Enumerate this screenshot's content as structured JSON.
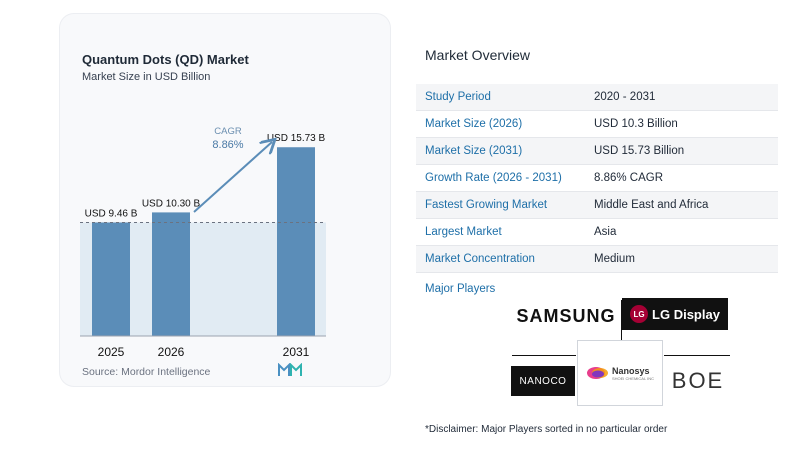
{
  "chart": {
    "title": "Quantum Dots (QD) Market",
    "subtitle": "Market Size in USD Billion",
    "source": "Source:  Mordor Intelligence",
    "cagr_label": "CAGR",
    "cagr_value": "8.86%"
  },
  "chart_data": {
    "type": "bar",
    "categories": [
      "2025",
      "2026",
      "2031"
    ],
    "values": [
      9.46,
      10.3,
      15.73
    ],
    "data_labels": [
      "USD 9.46 B",
      "USD 10.30 B",
      "USD 15.73 B"
    ],
    "title": "Quantum Dots (QD) Market",
    "subtitle": "Market Size in USD Billion",
    "xlabel": "",
    "ylabel": "",
    "ylim": [
      0,
      16.5
    ],
    "grid": false,
    "bar_color": "#5b8db8",
    "reference_line_value": 9.46,
    "annotations": [
      {
        "text": "CAGR",
        "value": "8.86%"
      }
    ]
  },
  "overview": {
    "title": "Market Overview",
    "rows": [
      {
        "label": "Study Period",
        "value": "2020 - 2031"
      },
      {
        "label": "Market Size (2026)",
        "value": "USD 10.3 Billion"
      },
      {
        "label": "Market Size (2031)",
        "value": "USD 15.73 Billion"
      },
      {
        "label": "Growth Rate (2026 - 2031)",
        "value": "8.86% CAGR"
      },
      {
        "label": "Fastest Growing Market",
        "value": "Middle East and Africa"
      },
      {
        "label": "Largest Market",
        "value": "Asia"
      },
      {
        "label": "Market Concentration",
        "value": "Medium"
      }
    ]
  },
  "players": {
    "title": "Major Players",
    "logos": {
      "samsung": "SAMSUNG",
      "lg_mark": "LG",
      "lg_display": "LG Display",
      "nanoco": "NANOCO",
      "nanosys": "Nanosys",
      "nanosys_sub": "SHOEI CHEMICAL INC",
      "boe": "BOE"
    }
  },
  "disclaimer": "*Disclaimer: Major Players sorted in no particular order",
  "colors": {
    "accent": "#1e6fa8",
    "bar": "#5b8db8",
    "panel": "#e1ebf3"
  }
}
